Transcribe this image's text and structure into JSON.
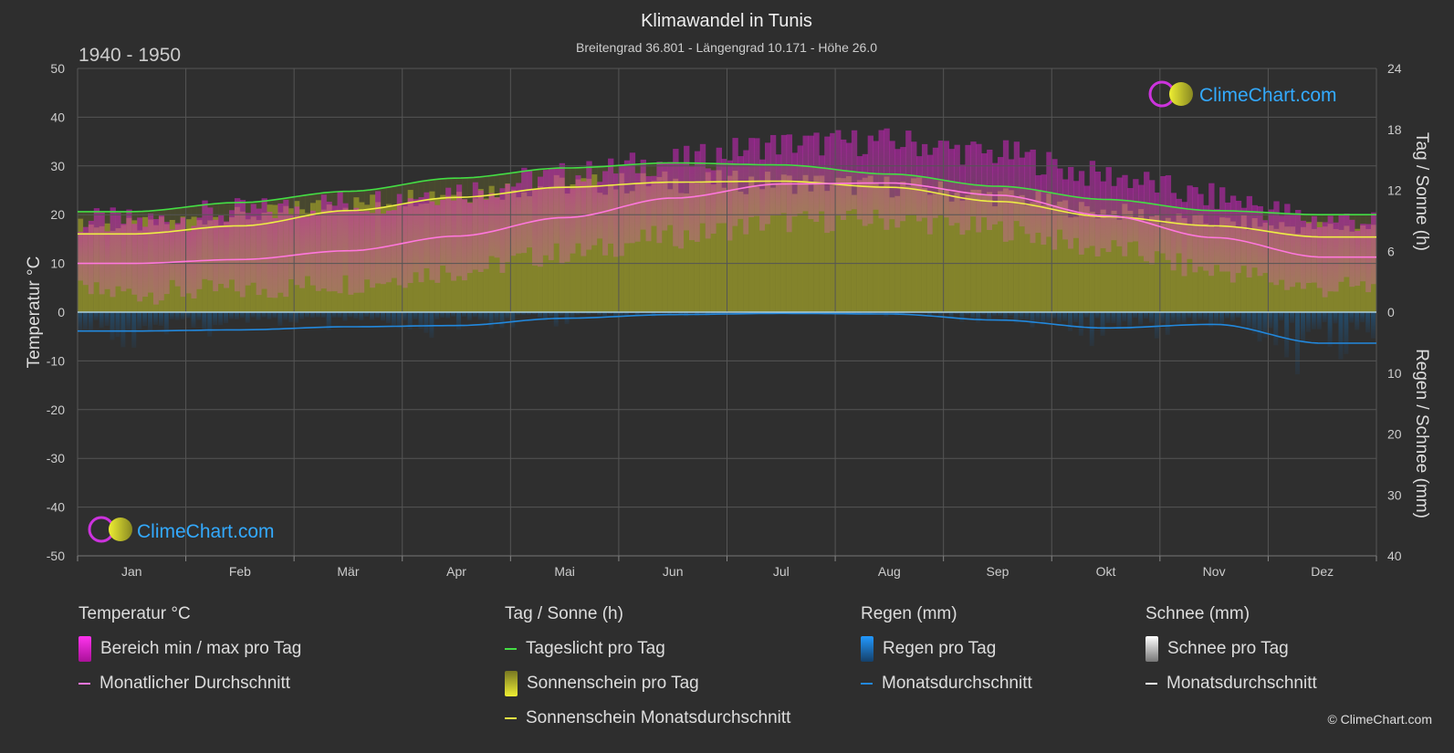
{
  "header": {
    "title": "Klimawandel in Tunis",
    "subtitle": "Breitengrad 36.801 - Längengrad 10.171 - Höhe 26.0",
    "period": "1940 - 1950"
  },
  "logo": {
    "text": "ClimeChart.com"
  },
  "copyright": "© ClimeChart.com",
  "colors": {
    "background": "#2e2e2e",
    "daylight": "#44dd44",
    "sunshine_avg": "#eeee44",
    "temp_avg": "#ff77dd",
    "temp_range": "#dd22cc",
    "rain": "#2288dd",
    "snow": "#ffffff",
    "logo_text": "#33aaff"
  },
  "chart_data": {
    "type": "line",
    "months": [
      "Jan",
      "Feb",
      "Mär",
      "Apr",
      "Mai",
      "Jun",
      "Jul",
      "Aug",
      "Sep",
      "Okt",
      "Nov",
      "Dez"
    ],
    "axes": {
      "left": {
        "label": "Temperatur °C",
        "range": [
          -50,
          50
        ],
        "ticks": [
          "50",
          "40",
          "30",
          "20",
          "10",
          "0",
          "-10",
          "-20",
          "-30",
          "-40",
          "-50"
        ]
      },
      "right_top": {
        "label": "Tag / Sonne (h)",
        "range": [
          0,
          24
        ],
        "ticks": [
          "24",
          "18",
          "12",
          "6",
          "0"
        ]
      },
      "right_bottom": {
        "label": "Regen / Schnee (mm)",
        "range": [
          0,
          40
        ],
        "ticks": [
          "10",
          "20",
          "30",
          "40"
        ]
      }
    },
    "grid": true,
    "series": [
      {
        "name": "Tageslicht pro Tag",
        "unit": "h",
        "values": [
          9.9,
          10.8,
          11.9,
          13.2,
          14.2,
          14.7,
          14.5,
          13.6,
          12.4,
          11.1,
          10.0,
          9.6
        ]
      },
      {
        "name": "Sonnenschein Monatsdurchschnitt",
        "unit": "h",
        "values": [
          7.7,
          8.5,
          10.0,
          11.3,
          12.3,
          12.8,
          12.9,
          12.3,
          10.9,
          9.4,
          8.5,
          7.4
        ]
      },
      {
        "name": "Sonnenschein pro Tag (obere Grenze)",
        "unit": "h",
        "values": [
          8.8,
          9.8,
          11.0,
          12.2,
          12.9,
          13.2,
          13.2,
          12.8,
          11.8,
          10.2,
          9.1,
          8.6
        ]
      },
      {
        "name": "Monatlicher Durchschnitt",
        "unit": "°C",
        "values": [
          10.0,
          10.8,
          12.6,
          15.6,
          19.4,
          23.4,
          26.3,
          26.5,
          24.0,
          19.8,
          15.3,
          11.3
        ]
      },
      {
        "name": "Bereich max pro Tag",
        "unit": "°C",
        "values": [
          18.5,
          20.5,
          22.5,
          25.0,
          28.0,
          31.0,
          34.5,
          35.0,
          32.5,
          28.0,
          23.5,
          19.0
        ]
      },
      {
        "name": "Bereich min pro Tag",
        "unit": "°C",
        "values": [
          4.0,
          4.5,
          6.0,
          8.5,
          12.0,
          15.5,
          18.5,
          19.0,
          17.0,
          13.0,
          8.5,
          5.0
        ]
      },
      {
        "name": "Regen Monatsdurchschnitt",
        "unit": "mm",
        "values": [
          3.1,
          2.9,
          2.4,
          2.2,
          1.0,
          0.4,
          0.2,
          0.3,
          1.3,
          2.6,
          2.0,
          5.1
        ]
      },
      {
        "name": "Schnee Monatsdurchschnitt",
        "unit": "mm",
        "values": [
          0,
          0,
          0,
          0,
          0,
          0,
          0,
          0,
          0,
          0,
          0,
          0
        ]
      }
    ]
  },
  "legend": {
    "temperature": {
      "title": "Temperatur °C",
      "items": [
        "Bereich min / max pro Tag",
        "Monatlicher Durchschnitt"
      ]
    },
    "sun": {
      "title": "Tag / Sonne (h)",
      "items": [
        "Tageslicht pro Tag",
        "Sonnenschein pro Tag",
        "Sonnenschein Monatsdurchschnitt"
      ]
    },
    "rain": {
      "title": "Regen (mm)",
      "items": [
        "Regen pro Tag",
        "Monatsdurchschnitt"
      ]
    },
    "snow": {
      "title": "Schnee (mm)",
      "items": [
        "Schnee pro Tag",
        "Monatsdurchschnitt"
      ]
    }
  }
}
